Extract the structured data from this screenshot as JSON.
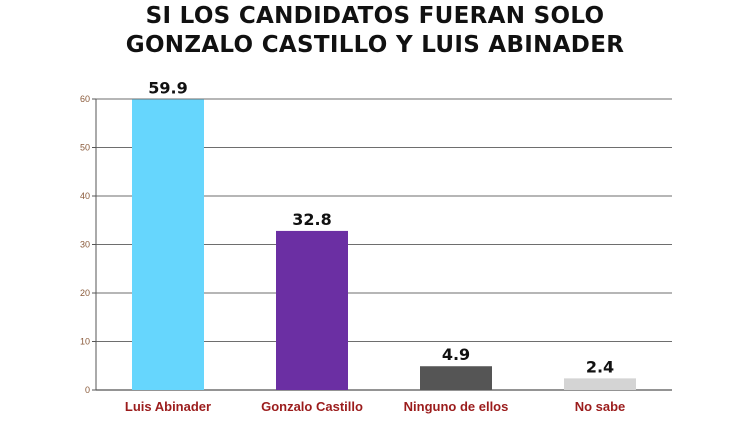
{
  "chart_data": {
    "type": "bar",
    "title_lines": [
      "SI LOS CANDIDATOS FUERAN SOLO",
      "GONZALO CASTILLO Y LUIS ABINADER"
    ],
    "categories": [
      "Luis Abinader",
      "Gonzalo Castillo",
      "Ninguno de ellos",
      "No sabe"
    ],
    "values": [
      59.9,
      32.8,
      4.9,
      2.4
    ],
    "value_labels": [
      "59.9",
      "32.8",
      "4.9",
      "2.4"
    ],
    "colors": [
      "#66d6fd",
      "#6b2fa3",
      "#555555",
      "#d4d4d4"
    ],
    "ylim": [
      0,
      60
    ],
    "yticks": [
      0,
      10,
      20,
      30,
      40,
      50,
      60
    ],
    "grid": true,
    "legend": "none"
  }
}
